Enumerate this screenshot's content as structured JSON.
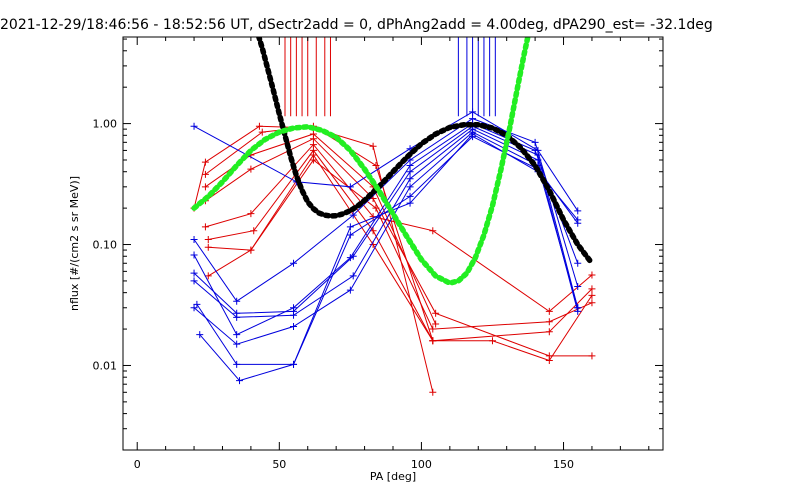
{
  "chart_data": {
    "type": "line",
    "title": "2021-12-29/18:46:56 - 18:52:56 UT, dSectr2add = 0, dPhAng2add = 4.00deg, dPA290_est= -32.1deg",
    "xlabel": "PA [deg]",
    "ylabel": "nflux [#/(cm2 s sr MeV)]",
    "xlim": [
      -5,
      185
    ],
    "ylim": [
      0.002,
      5.2
    ],
    "yscale": "log",
    "xticks": [
      0,
      50,
      100,
      150
    ],
    "xtick_labels": [
      "0",
      "50",
      "100",
      "150"
    ],
    "yticks": [
      0.01,
      0.1,
      1.0
    ],
    "ytick_labels": [
      "0.01",
      "0.10",
      "1.00"
    ],
    "grid": false,
    "legend": "none",
    "colors": {
      "red": "#dd0000",
      "blue": "#0000dd",
      "black": "#000000",
      "green": "#22ee22"
    },
    "red_series": [
      {
        "x": [
          20,
          24,
          43,
          62,
          83,
          104
        ],
        "y": [
          0.2,
          0.48,
          0.95,
          0.92,
          0.65,
          0.006
        ]
      },
      {
        "x": [
          24,
          44,
          62,
          84,
          104
        ],
        "y": [
          0.38,
          0.85,
          0.95,
          0.45,
          0.016
        ]
      },
      {
        "x": [
          24,
          40,
          62,
          83,
          105
        ],
        "y": [
          0.3,
          0.55,
          0.82,
          0.3,
          0.022
        ]
      },
      {
        "x": [
          24,
          40,
          62,
          83,
          105,
          145,
          160
        ],
        "y": [
          0.23,
          0.42,
          0.75,
          0.24,
          0.027,
          0.012,
          0.012
        ]
      },
      {
        "x": [
          24,
          40,
          62,
          83,
          104,
          145,
          160
        ],
        "y": [
          0.14,
          0.18,
          0.67,
          0.17,
          0.13,
          0.028,
          0.056
        ]
      },
      {
        "x": [
          25,
          41,
          62,
          83,
          104,
          145,
          160
        ],
        "y": [
          0.11,
          0.13,
          0.6,
          0.13,
          0.016,
          0.019,
          0.043
        ]
      },
      {
        "x": [
          25,
          40,
          62,
          83,
          104,
          125,
          145,
          160
        ],
        "y": [
          0.095,
          0.09,
          0.55,
          0.1,
          0.016,
          0.016,
          0.011,
          0.038
        ]
      },
      {
        "x": [
          25,
          40,
          62,
          84,
          104,
          145,
          160
        ],
        "y": [
          0.055,
          0.09,
          0.5,
          0.2,
          0.02,
          0.023,
          0.033
        ]
      }
    ],
    "blue_series": [
      {
        "x": [
          20,
          56,
          75,
          96,
          118,
          141,
          155
        ],
        "y": [
          0.95,
          0.33,
          0.3,
          0.62,
          1.25,
          0.6,
          0.19
        ]
      },
      {
        "x": [
          20,
          35,
          55,
          76,
          96,
          118,
          140,
          155
        ],
        "y": [
          0.11,
          0.034,
          0.07,
          0.175,
          0.5,
          1.1,
          0.7,
          0.045
        ]
      },
      {
        "x": [
          20,
          35,
          55,
          75,
          96,
          118,
          140,
          155
        ],
        "y": [
          0.082,
          0.018,
          0.03,
          0.078,
          0.45,
          1.0,
          0.6,
          0.07
        ]
      },
      {
        "x": [
          20,
          35,
          55,
          76,
          96,
          118,
          141,
          155
        ],
        "y": [
          0.058,
          0.027,
          0.028,
          0.08,
          0.4,
          0.95,
          0.55,
          0.03
        ]
      },
      {
        "x": [
          20,
          35,
          55,
          76,
          96,
          118,
          141,
          155
        ],
        "y": [
          0.05,
          0.025,
          0.026,
          0.055,
          0.35,
          0.9,
          0.5,
          0.028
        ]
      },
      {
        "x": [
          20,
          35,
          55,
          75,
          96,
          118,
          141,
          155
        ],
        "y": [
          0.03,
          0.015,
          0.021,
          0.042,
          0.3,
          0.85,
          0.45,
          0.03
        ]
      },
      {
        "x": [
          22,
          36,
          55,
          75,
          96,
          118,
          141,
          155
        ],
        "y": [
          0.018,
          0.0075,
          0.0102,
          0.12,
          0.25,
          0.78,
          0.42,
          0.15
        ]
      },
      {
        "x": [
          21,
          35,
          55,
          75,
          96,
          118,
          141,
          155
        ],
        "y": [
          0.032,
          0.0102,
          0.0102,
          0.14,
          0.22,
          0.82,
          0.4,
          0.16
        ]
      }
    ],
    "black_fit": {
      "x": [
        42,
        44,
        46,
        48,
        50,
        52,
        54,
        56,
        58,
        60,
        62,
        64,
        66,
        68,
        70,
        72,
        74,
        76,
        78,
        80,
        85,
        90,
        95,
        100,
        105,
        110,
        115,
        120,
        125,
        130,
        135,
        140,
        145,
        150,
        155,
        160
      ],
      "y": [
        6.0,
        4.2,
        2.8,
        1.85,
        1.2,
        0.8,
        0.53,
        0.37,
        0.28,
        0.225,
        0.198,
        0.182,
        0.175,
        0.172,
        0.173,
        0.178,
        0.186,
        0.197,
        0.212,
        0.232,
        0.3,
        0.4,
        0.53,
        0.68,
        0.82,
        0.93,
        0.98,
        0.98,
        0.92,
        0.8,
        0.63,
        0.45,
        0.28,
        0.16,
        0.1,
        0.07
      ]
    },
    "green_fit": {
      "x": [
        20,
        25,
        30,
        35,
        40,
        45,
        50,
        55,
        60,
        65,
        70,
        75,
        80,
        85,
        90,
        95,
        100,
        105,
        110,
        113,
        116,
        119,
        122,
        125,
        128,
        131,
        134,
        136,
        138
      ],
      "y": [
        0.2,
        0.25,
        0.33,
        0.45,
        0.6,
        0.74,
        0.85,
        0.92,
        0.94,
        0.88,
        0.77,
        0.6,
        0.42,
        0.28,
        0.18,
        0.115,
        0.075,
        0.055,
        0.048,
        0.05,
        0.058,
        0.078,
        0.12,
        0.21,
        0.42,
        0.9,
        2.1,
        3.6,
        6.0
      ]
    },
    "red_vlines_x": [
      52,
      54,
      56,
      58,
      60,
      63,
      66,
      68
    ],
    "blue_vlines_x": [
      113,
      116,
      118,
      120,
      122,
      124,
      126
    ]
  }
}
